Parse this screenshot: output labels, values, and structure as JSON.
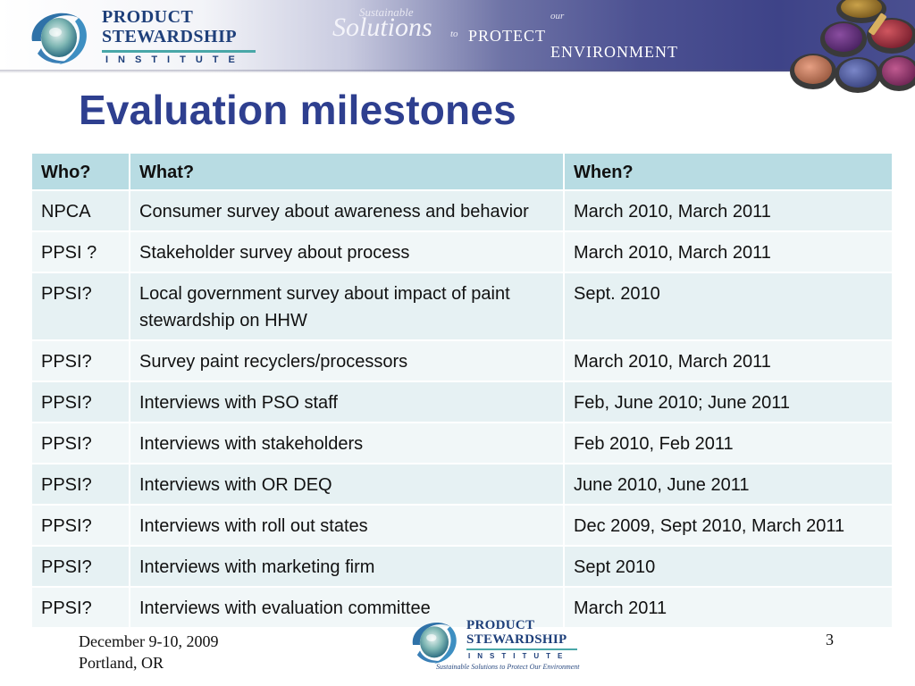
{
  "header": {
    "logo": {
      "line1": "PRODUCT",
      "line2": "STEWARDSHIP",
      "line3": "INSTITUTE"
    },
    "tagline": {
      "sustainable": "Sustainable",
      "solutions": "Solutions",
      "to": "to",
      "protect": "PROTECT",
      "our": "our",
      "environment": "ENVIRONMENT"
    }
  },
  "slide": {
    "title": "Evaluation milestones",
    "page_number": "3"
  },
  "table": {
    "headers": [
      "Who?",
      "What?",
      "When?"
    ],
    "rows": [
      [
        "NPCA",
        "Consumer survey about awareness and behavior",
        "March 2010, March 2011"
      ],
      [
        "PPSI ?",
        "Stakeholder survey about process",
        "March 2010, March 2011"
      ],
      [
        "PPSI?",
        "Local government survey about impact of paint stewardship on HHW",
        "Sept. 2010"
      ],
      [
        "PPSI?",
        "Survey paint recyclers/processors",
        "March 2010, March 2011"
      ],
      [
        "PPSI?",
        "Interviews with PSO staff",
        "Feb, June 2010; June 2011"
      ],
      [
        "PPSI?",
        "Interviews with stakeholders",
        "Feb 2010,  Feb 2011"
      ],
      [
        "PPSI?",
        "Interviews with OR DEQ",
        "June 2010, June 2011"
      ],
      [
        "PPSI?",
        "Interviews with roll out states",
        "Dec 2009, Sept 2010, March 2011"
      ],
      [
        "PPSI?",
        "Interviews with marketing firm",
        "Sept 2010"
      ],
      [
        "PPSI?",
        "Interviews with evaluation committee",
        "March 2011"
      ]
    ]
  },
  "footer": {
    "date": "December 9-10, 2009",
    "location": "Portland, OR",
    "logo": {
      "line1": "PRODUCT",
      "line2": "STEWARDSHIP",
      "line3": "INSTITUTE",
      "tagline": "Sustainable Solutions to Protect Our Environment"
    }
  },
  "colors": {
    "title": "#2e3f8f",
    "header_row": "#b8dce3",
    "row_odd": "#e6f1f3",
    "row_even": "#f1f7f8",
    "logo_blue": "#1e3f7a",
    "banner_purple": "#4c5192"
  },
  "icons": {
    "logo_mark": "swirl-globe-icon",
    "decor": "paint-cans-icon"
  }
}
